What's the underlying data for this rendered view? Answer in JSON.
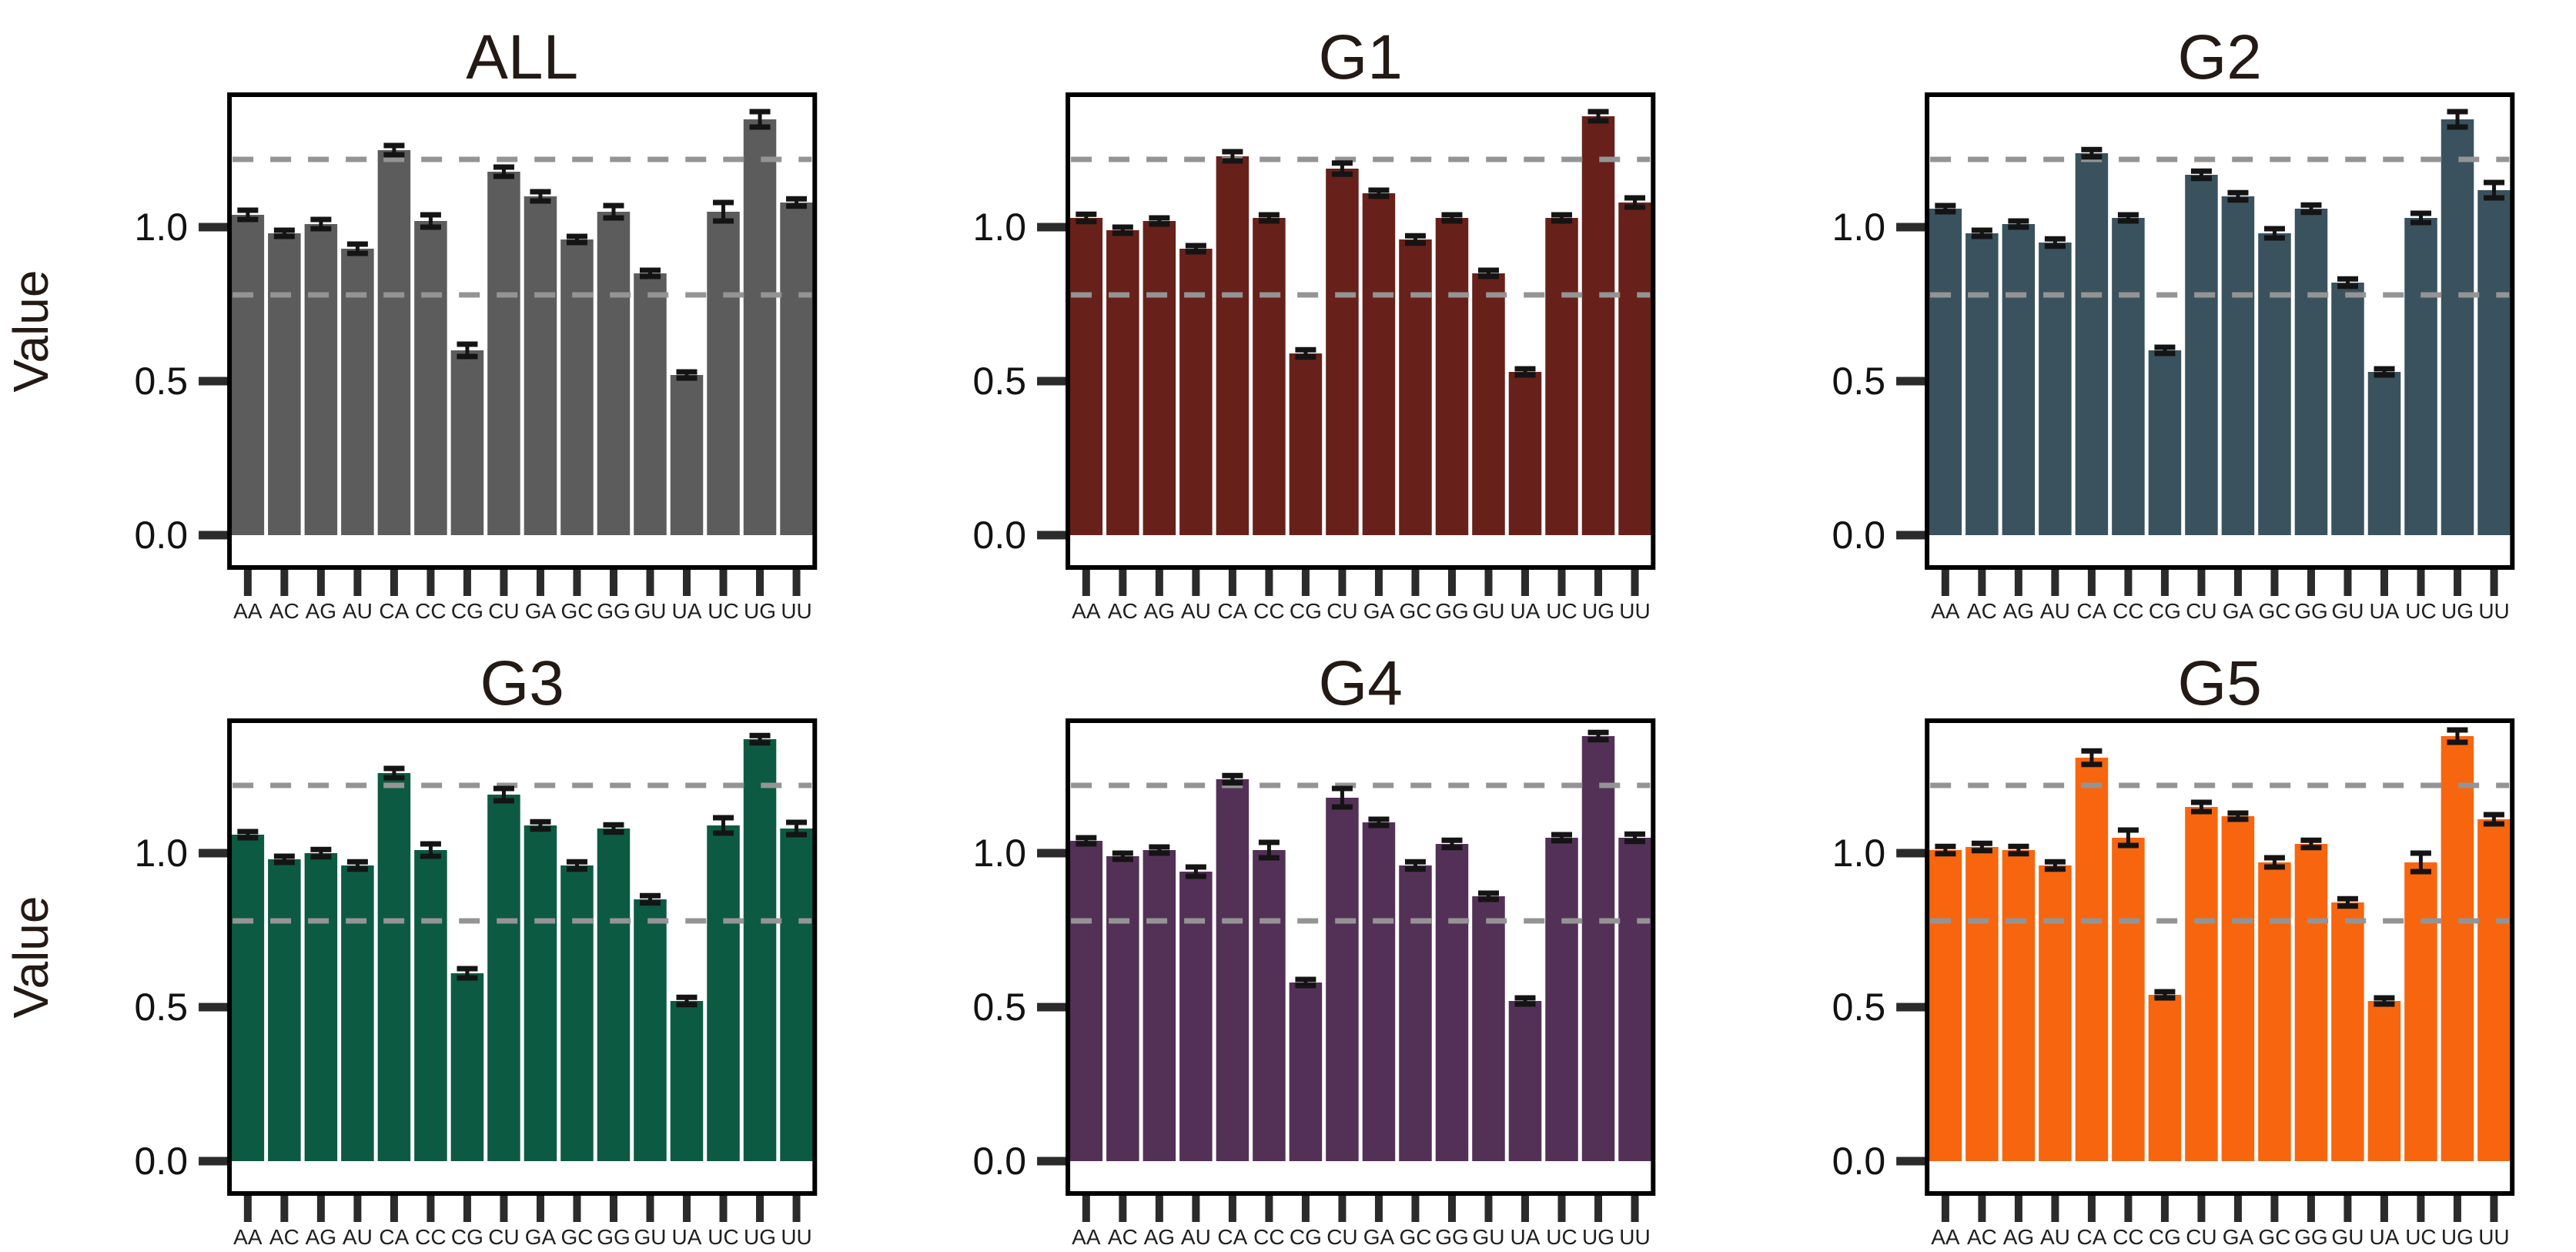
{
  "chart_data": {
    "type": "bar",
    "layout": "2x3 small multiples",
    "ylabel": "Value",
    "xlabel": "",
    "categories": [
      "AA",
      "AC",
      "AG",
      "AU",
      "CA",
      "CC",
      "CG",
      "CU",
      "GA",
      "GC",
      "GG",
      "GU",
      "UA",
      "UC",
      "UG",
      "UU"
    ],
    "y_ticks": [
      {
        "label": "0.0",
        "value": 0.0
      },
      {
        "label": "0.5",
        "value": 0.5
      },
      {
        "label": "1.0",
        "value": 1.0
      }
    ],
    "ylim": [
      -0.105,
      1.43
    ],
    "grid": "off",
    "legend": "none",
    "guide_lines": {
      "values": [
        0.78,
        1.22
      ],
      "style": "dashed",
      "color": "#949494"
    },
    "error_bar_color": "#141414",
    "frame_color": "#000000",
    "tick_color": "#2b2b2b",
    "title_color": "#241a15",
    "panels": [
      {
        "title": "ALL",
        "color": "#5c5c5c",
        "show_ylabel": true,
        "values": [
          1.04,
          0.98,
          1.01,
          0.93,
          1.25,
          1.02,
          0.6,
          1.18,
          1.1,
          0.96,
          1.05,
          0.85,
          0.52,
          1.05,
          1.35,
          1.08
        ],
        "errors": [
          0.015,
          0.01,
          0.015,
          0.015,
          0.015,
          0.02,
          0.02,
          0.015,
          0.015,
          0.01,
          0.02,
          0.01,
          0.01,
          0.03,
          0.025,
          0.012
        ]
      },
      {
        "title": "G1",
        "color": "#67211a",
        "show_ylabel": false,
        "values": [
          1.03,
          0.99,
          1.02,
          0.93,
          1.23,
          1.03,
          0.59,
          1.19,
          1.11,
          0.96,
          1.03,
          0.85,
          0.53,
          1.03,
          1.36,
          1.08
        ],
        "errors": [
          0.012,
          0.01,
          0.01,
          0.01,
          0.015,
          0.01,
          0.012,
          0.018,
          0.01,
          0.012,
          0.01,
          0.01,
          0.01,
          0.01,
          0.015,
          0.015
        ]
      },
      {
        "title": "G2",
        "color": "#3a525e",
        "show_ylabel": false,
        "values": [
          1.06,
          0.98,
          1.01,
          0.95,
          1.24,
          1.03,
          0.6,
          1.17,
          1.1,
          0.98,
          1.06,
          0.82,
          0.53,
          1.03,
          1.35,
          1.12
        ],
        "errors": [
          0.01,
          0.01,
          0.01,
          0.012,
          0.012,
          0.01,
          0.01,
          0.012,
          0.012,
          0.015,
          0.012,
          0.012,
          0.01,
          0.015,
          0.025,
          0.025
        ]
      },
      {
        "title": "G3",
        "color": "#0c5a41",
        "show_ylabel": true,
        "values": [
          1.06,
          0.98,
          1.0,
          0.96,
          1.26,
          1.01,
          0.61,
          1.19,
          1.09,
          0.96,
          1.08,
          0.85,
          0.52,
          1.09,
          1.37,
          1.08
        ],
        "errors": [
          0.01,
          0.01,
          0.012,
          0.012,
          0.015,
          0.02,
          0.015,
          0.02,
          0.012,
          0.012,
          0.012,
          0.012,
          0.012,
          0.025,
          0.012,
          0.02
        ]
      },
      {
        "title": "G4",
        "color": "#533157",
        "show_ylabel": false,
        "values": [
          1.04,
          0.99,
          1.01,
          0.94,
          1.24,
          1.01,
          0.58,
          1.18,
          1.1,
          0.96,
          1.03,
          0.86,
          0.52,
          1.05,
          1.38,
          1.05
        ],
        "errors": [
          0.01,
          0.01,
          0.01,
          0.015,
          0.012,
          0.025,
          0.01,
          0.03,
          0.01,
          0.012,
          0.012,
          0.01,
          0.01,
          0.01,
          0.012,
          0.012
        ]
      },
      {
        "title": "G5",
        "color": "#f8650f",
        "show_ylabel": false,
        "values": [
          1.01,
          1.02,
          1.01,
          0.96,
          1.31,
          1.05,
          0.54,
          1.15,
          1.12,
          0.97,
          1.03,
          0.84,
          0.52,
          0.97,
          1.38,
          1.11
        ],
        "errors": [
          0.012,
          0.012,
          0.012,
          0.012,
          0.022,
          0.025,
          0.01,
          0.015,
          0.01,
          0.015,
          0.012,
          0.012,
          0.01,
          0.03,
          0.02,
          0.015
        ]
      }
    ]
  }
}
